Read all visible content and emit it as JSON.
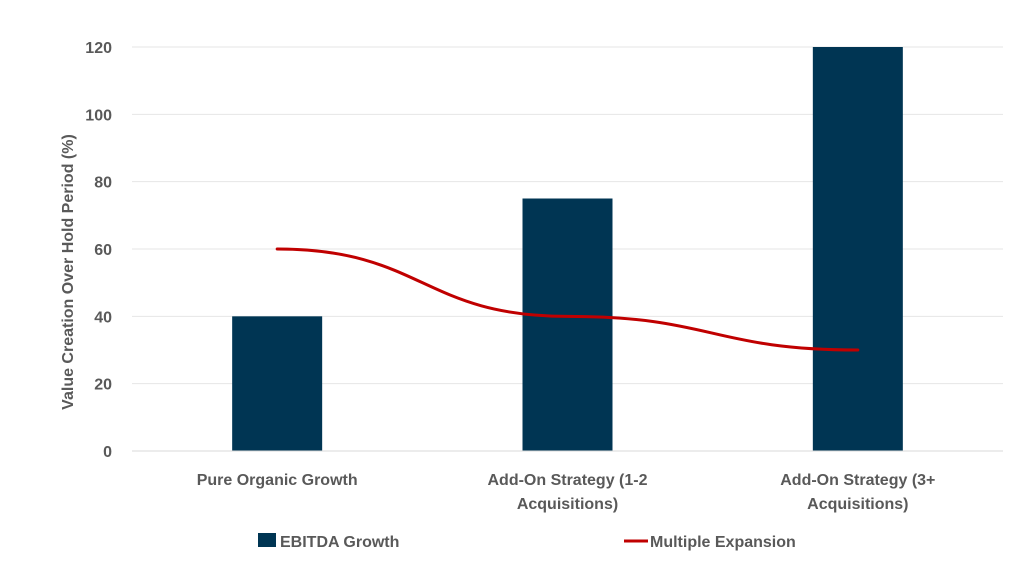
{
  "chart_data": {
    "type": "bar",
    "categories": [
      [
        "Pure Organic Growth"
      ],
      [
        "Add-On Strategy (1-2",
        "Acquisitions)"
      ],
      [
        "Add-On Strategy (3+",
        "Acquisitions)"
      ]
    ],
    "series": [
      {
        "name": "EBITDA Growth",
        "type": "bar",
        "color": "#003553",
        "values": [
          40,
          75,
          120
        ]
      },
      {
        "name": "Multiple Expansion",
        "type": "line",
        "color": "#C00000",
        "values": [
          60,
          40,
          30
        ]
      }
    ],
    "ylabel": "Value Creation Over Hold Period (%)",
    "ylim": [
      0,
      120
    ],
    "yticks": [
      0,
      20,
      40,
      60,
      80,
      100,
      120
    ],
    "grid": true,
    "legend_position": "bottom"
  }
}
